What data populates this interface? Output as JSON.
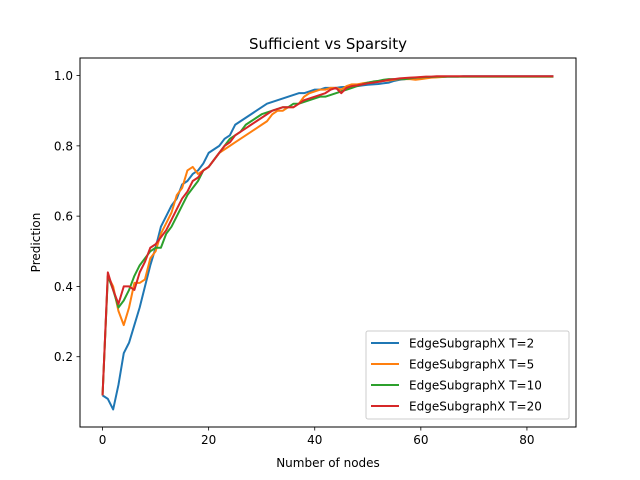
{
  "chart_data": {
    "type": "line",
    "title": "Sufficient vs Sparsity",
    "xlabel": "Number of nodes",
    "ylabel": "Prediction",
    "xlim": [
      -4.25,
      89.25
    ],
    "ylim": [
      0.0,
      1.05
    ],
    "xticks": [
      0,
      20,
      40,
      60,
      80
    ],
    "yticks": [
      0.2,
      0.4,
      0.6,
      0.8,
      1.0
    ],
    "ytick_labels": [
      "0.2",
      "0.4",
      "0.6",
      "0.8",
      "1.0"
    ],
    "grid": false,
    "legend_position": "lower right",
    "series": [
      {
        "name": "EdgeSubgraphX T=2",
        "color": "#1f77b4",
        "x": [
          0,
          1,
          2,
          3,
          4,
          5,
          6,
          7,
          8,
          9,
          10,
          11,
          12,
          13,
          14,
          15,
          16,
          17,
          18,
          19,
          20,
          21,
          22,
          23,
          24,
          25,
          26,
          27,
          28,
          29,
          30,
          31,
          32,
          33,
          34,
          35,
          36,
          37,
          38,
          39,
          40,
          41,
          42,
          43,
          44,
          45,
          46,
          47,
          48,
          49,
          50,
          51,
          52,
          53,
          54,
          55,
          56,
          57,
          58,
          59,
          60,
          61,
          62,
          63,
          64,
          65,
          66,
          67,
          68,
          69,
          70,
          71,
          72,
          73,
          74,
          75,
          76,
          77,
          78,
          79,
          80,
          81,
          82,
          83,
          84,
          85
        ],
        "y": [
          0.09,
          0.08,
          0.05,
          0.12,
          0.21,
          0.24,
          0.29,
          0.34,
          0.4,
          0.46,
          0.51,
          0.57,
          0.6,
          0.63,
          0.65,
          0.69,
          0.7,
          0.72,
          0.73,
          0.75,
          0.78,
          0.79,
          0.8,
          0.82,
          0.83,
          0.86,
          0.87,
          0.88,
          0.89,
          0.9,
          0.91,
          0.92,
          0.925,
          0.93,
          0.935,
          0.94,
          0.945,
          0.95,
          0.95,
          0.955,
          0.96,
          0.96,
          0.965,
          0.965,
          0.965,
          0.967,
          0.968,
          0.97,
          0.97,
          0.972,
          0.974,
          0.975,
          0.976,
          0.978,
          0.98,
          0.985,
          0.988,
          0.99,
          0.992,
          0.993,
          0.994,
          0.995,
          0.995,
          0.996,
          0.996,
          0.997,
          0.997,
          0.997,
          0.998,
          0.998,
          0.998,
          0.998,
          0.998,
          0.998,
          0.998,
          0.998,
          0.998,
          0.998,
          0.998,
          0.998,
          0.998,
          0.998,
          0.998,
          0.998,
          0.998,
          0.998
        ]
      },
      {
        "name": "EdgeSubgraphX T=5",
        "color": "#ff7f0e",
        "x": [
          0,
          1,
          2,
          3,
          4,
          5,
          6,
          7,
          8,
          9,
          10,
          11,
          12,
          13,
          14,
          15,
          16,
          17,
          18,
          19,
          20,
          21,
          22,
          23,
          24,
          25,
          26,
          27,
          28,
          29,
          30,
          31,
          32,
          33,
          34,
          35,
          36,
          37,
          38,
          39,
          40,
          41,
          42,
          43,
          44,
          45,
          46,
          47,
          48,
          49,
          50,
          51,
          52,
          53,
          54,
          55,
          56,
          57,
          58,
          59,
          60,
          61,
          62,
          63,
          64,
          65,
          66,
          67,
          68,
          69,
          70,
          71,
          72,
          73,
          74,
          75,
          76,
          77,
          78,
          79,
          80,
          81,
          82,
          83,
          84,
          85
        ],
        "y": [
          0.09,
          0.43,
          0.4,
          0.33,
          0.29,
          0.34,
          0.41,
          0.41,
          0.42,
          0.48,
          0.5,
          0.55,
          0.58,
          0.61,
          0.66,
          0.68,
          0.73,
          0.74,
          0.72,
          0.73,
          0.74,
          0.76,
          0.78,
          0.79,
          0.8,
          0.81,
          0.82,
          0.83,
          0.84,
          0.85,
          0.86,
          0.87,
          0.89,
          0.9,
          0.9,
          0.91,
          0.91,
          0.92,
          0.94,
          0.95,
          0.955,
          0.96,
          0.96,
          0.965,
          0.965,
          0.96,
          0.97,
          0.975,
          0.975,
          0.978,
          0.98,
          0.982,
          0.984,
          0.985,
          0.986,
          0.988,
          0.99,
          0.99,
          0.99,
          0.988,
          0.99,
          0.992,
          0.994,
          0.995,
          0.996,
          0.997,
          0.997,
          0.997,
          0.997,
          0.997,
          0.997,
          0.997,
          0.997,
          0.997,
          0.997,
          0.997,
          0.997,
          0.997,
          0.997,
          0.997,
          0.997,
          0.997,
          0.997,
          0.997,
          0.997,
          0.997
        ]
      },
      {
        "name": "EdgeSubgraphX T=10",
        "color": "#2ca02c",
        "x": [
          0,
          1,
          2,
          3,
          4,
          5,
          6,
          7,
          8,
          9,
          10,
          11,
          12,
          13,
          14,
          15,
          16,
          17,
          18,
          19,
          20,
          21,
          22,
          23,
          24,
          25,
          26,
          27,
          28,
          29,
          30,
          31,
          32,
          33,
          34,
          35,
          36,
          37,
          38,
          39,
          40,
          41,
          42,
          43,
          44,
          45,
          46,
          47,
          48,
          49,
          50,
          51,
          52,
          53,
          54,
          55,
          56,
          57,
          58,
          59,
          60,
          61,
          62,
          63,
          64,
          65,
          66,
          67,
          68,
          69,
          70,
          71,
          72,
          73,
          74,
          75,
          76,
          77,
          78,
          79,
          80,
          81,
          82,
          83,
          84,
          85
        ],
        "y": [
          0.09,
          0.43,
          0.39,
          0.34,
          0.36,
          0.39,
          0.43,
          0.46,
          0.48,
          0.5,
          0.51,
          0.51,
          0.55,
          0.57,
          0.6,
          0.63,
          0.66,
          0.68,
          0.7,
          0.73,
          0.74,
          0.76,
          0.78,
          0.8,
          0.82,
          0.83,
          0.84,
          0.86,
          0.87,
          0.88,
          0.89,
          0.895,
          0.9,
          0.905,
          0.91,
          0.91,
          0.92,
          0.92,
          0.925,
          0.93,
          0.935,
          0.94,
          0.94,
          0.945,
          0.95,
          0.955,
          0.96,
          0.965,
          0.97,
          0.975,
          0.98,
          0.983,
          0.985,
          0.988,
          0.99,
          0.99,
          0.99,
          0.99,
          0.992,
          0.994,
          0.995,
          0.996,
          0.996,
          0.997,
          0.997,
          0.997,
          0.997,
          0.997,
          0.997,
          0.997,
          0.997,
          0.997,
          0.997,
          0.997,
          0.997,
          0.997,
          0.997,
          0.997,
          0.997,
          0.997,
          0.997,
          0.997,
          0.997,
          0.997,
          0.997,
          0.997
        ]
      },
      {
        "name": "EdgeSubgraphX T=20",
        "color": "#d62728",
        "x": [
          0,
          1,
          2,
          3,
          4,
          5,
          6,
          7,
          8,
          9,
          10,
          11,
          12,
          13,
          14,
          15,
          16,
          17,
          18,
          19,
          20,
          21,
          22,
          23,
          24,
          25,
          26,
          27,
          28,
          29,
          30,
          31,
          32,
          33,
          34,
          35,
          36,
          37,
          38,
          39,
          40,
          41,
          42,
          43,
          44,
          45,
          46,
          47,
          48,
          49,
          50,
          51,
          52,
          53,
          54,
          55,
          56,
          57,
          58,
          59,
          60,
          61,
          62,
          63,
          64,
          65,
          66,
          67,
          68,
          69,
          70,
          71,
          72,
          73,
          74,
          75,
          76,
          77,
          78,
          79,
          80,
          81,
          82,
          83,
          84,
          85
        ],
        "y": [
          0.09,
          0.44,
          0.39,
          0.35,
          0.4,
          0.4,
          0.39,
          0.44,
          0.47,
          0.51,
          0.52,
          0.54,
          0.56,
          0.59,
          0.62,
          0.65,
          0.67,
          0.7,
          0.71,
          0.73,
          0.74,
          0.76,
          0.78,
          0.8,
          0.81,
          0.83,
          0.84,
          0.85,
          0.86,
          0.87,
          0.88,
          0.89,
          0.9,
          0.905,
          0.91,
          0.91,
          0.91,
          0.92,
          0.93,
          0.935,
          0.94,
          0.945,
          0.95,
          0.96,
          0.965,
          0.95,
          0.965,
          0.97,
          0.972,
          0.975,
          0.978,
          0.98,
          0.982,
          0.985,
          0.988,
          0.99,
          0.992,
          0.993,
          0.994,
          0.995,
          0.996,
          0.997,
          0.997,
          0.998,
          0.998,
          0.998,
          0.998,
          0.998,
          0.998,
          0.998,
          0.998,
          0.998,
          0.998,
          0.998,
          0.998,
          0.998,
          0.998,
          0.998,
          0.998,
          0.998,
          0.998,
          0.998,
          0.998,
          0.998,
          0.998,
          0.998
        ]
      }
    ]
  }
}
